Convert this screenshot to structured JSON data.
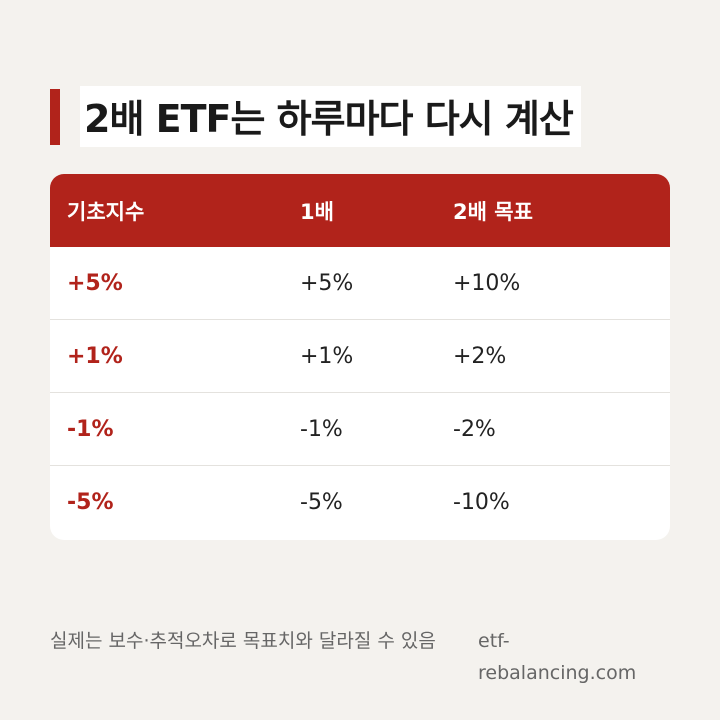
{
  "title": "2배 ETF는 하루마다 다시 계산",
  "table": {
    "headers": [
      "기초지수",
      "1배",
      "2배 목표"
    ],
    "rows": [
      [
        "+5%",
        "+5%",
        "+10%"
      ],
      [
        "+1%",
        "+1%",
        "+2%"
      ],
      [
        "-1%",
        "-1%",
        "-2%"
      ],
      [
        "-5%",
        "-5%",
        "-10%"
      ]
    ]
  },
  "footer": {
    "note": "실제는 보수·추적오차로 목표치와 달라질 수 있음",
    "source_line1": "etf-",
    "source_line2": "rebalancing.com"
  },
  "colors": {
    "accent": "#b1231b",
    "background": "#f4f2ee",
    "card": "#ffffff"
  }
}
